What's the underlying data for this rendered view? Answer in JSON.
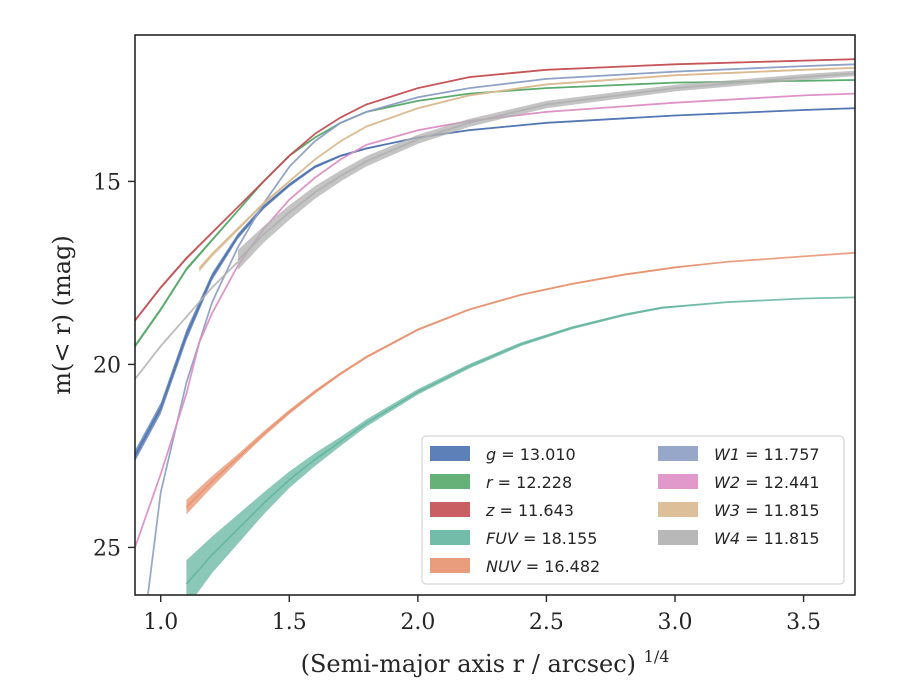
{
  "chart_data": {
    "type": "line",
    "xlabel": "(Semi-major axis r / arcsec)",
    "xlabel_var": "r",
    "xlabel_exponent": "1/4",
    "ylabel": "m(< r) (mag)",
    "xlim": [
      0.9,
      3.7
    ],
    "ylim": [
      26.3,
      11.0
    ],
    "y_inverted": true,
    "grid": false,
    "legend_position": "lower-right",
    "xticks": [
      1.0,
      1.5,
      2.0,
      2.5,
      3.0,
      3.5
    ],
    "xtick_labels": [
      "1.0",
      "1.5",
      "2.0",
      "2.5",
      "3.0",
      "3.5"
    ],
    "yticks": [
      15,
      20,
      25
    ],
    "ytick_labels": [
      "15",
      "20",
      "25"
    ],
    "series": [
      {
        "name": "g",
        "legend_label": "g = 13.010",
        "color": "#4c72b0",
        "x": [
          0.9,
          1.0,
          1.1,
          1.2,
          1.3,
          1.4,
          1.5,
          1.6,
          1.7,
          1.8,
          2.0,
          2.2,
          2.5,
          3.0,
          3.5,
          3.7
        ],
        "y": [
          22.5,
          21.2,
          19.2,
          17.6,
          16.5,
          15.7,
          15.1,
          14.6,
          14.3,
          14.1,
          13.8,
          13.6,
          13.4,
          13.2,
          13.05,
          13.0
        ],
        "band": [
          0.3,
          0.3,
          0.3,
          0.2,
          0.15,
          0.12,
          0.1,
          0.08,
          0.06,
          0.05,
          0.04,
          0.04,
          0.04,
          0.04,
          0.04,
          0.04
        ]
      },
      {
        "name": "r",
        "legend_label": "r = 12.228",
        "color": "#55a868",
        "x": [
          0.9,
          1.0,
          1.1,
          1.2,
          1.3,
          1.4,
          1.5,
          1.6,
          1.7,
          1.8,
          2.0,
          2.2,
          2.5,
          3.0,
          3.5,
          3.7
        ],
        "y": [
          19.5,
          18.5,
          17.4,
          16.6,
          15.8,
          15.0,
          14.3,
          13.8,
          13.4,
          13.1,
          12.8,
          12.6,
          12.45,
          12.3,
          12.25,
          12.23
        ],
        "band": [
          0.1,
          0.1,
          0.1,
          0.08,
          0.06,
          0.05,
          0.05,
          0.05,
          0.04,
          0.04,
          0.04,
          0.04,
          0.04,
          0.04,
          0.04,
          0.04
        ]
      },
      {
        "name": "z",
        "legend_label": "z = 11.643",
        "color": "#c44e52",
        "x": [
          0.9,
          1.0,
          1.1,
          1.2,
          1.3,
          1.4,
          1.5,
          1.6,
          1.7,
          1.8,
          2.0,
          2.2,
          2.5,
          3.0,
          3.5,
          3.7
        ],
        "y": [
          18.8,
          17.9,
          17.1,
          16.4,
          15.7,
          15.0,
          14.3,
          13.7,
          13.25,
          12.9,
          12.45,
          12.15,
          11.95,
          11.8,
          11.7,
          11.66
        ],
        "band": [
          0.08,
          0.08,
          0.08,
          0.06,
          0.05,
          0.05,
          0.05,
          0.04,
          0.04,
          0.04,
          0.04,
          0.04,
          0.04,
          0.04,
          0.04,
          0.04
        ]
      },
      {
        "name": "FUV",
        "legend_label": "FUV = 18.155",
        "color": "#64b5a0",
        "x": [
          1.1,
          1.2,
          1.3,
          1.4,
          1.5,
          1.6,
          1.7,
          1.8,
          2.0,
          2.2,
          2.4,
          2.6,
          2.8,
          2.95,
          3.2,
          3.5,
          3.7
        ],
        "y": [
          26.0,
          25.2,
          24.5,
          23.8,
          23.15,
          22.6,
          22.1,
          21.6,
          20.75,
          20.05,
          19.45,
          19.0,
          18.65,
          18.45,
          18.3,
          18.2,
          18.17
        ],
        "band": [
          1.3,
          1.0,
          0.8,
          0.6,
          0.45,
          0.35,
          0.25,
          0.2,
          0.15,
          0.12,
          0.1,
          0.08,
          0.07,
          0.06,
          0.0,
          0.0,
          0.0
        ]
      },
      {
        "name": "NUV",
        "legend_label": "NUV = 16.482",
        "color": "#e8926e",
        "x": [
          1.1,
          1.2,
          1.3,
          1.4,
          1.5,
          1.6,
          1.7,
          1.8,
          2.0,
          2.2,
          2.4,
          2.6,
          2.8,
          3.0,
          3.2,
          3.5,
          3.7
        ],
        "y": [
          23.9,
          23.2,
          22.55,
          21.9,
          21.3,
          20.75,
          20.25,
          19.8,
          19.05,
          18.5,
          18.1,
          17.8,
          17.55,
          17.35,
          17.2,
          17.05,
          16.95
        ],
        "band": [
          0.4,
          0.3,
          0.2,
          0.15,
          0.12,
          0.1,
          0.08,
          0.07,
          0.06,
          0.05,
          0.05,
          0.05,
          0.05,
          0.05,
          0.0,
          0.0,
          0.0
        ]
      },
      {
        "name": "W1",
        "legend_label": "W1 = 11.757",
        "color": "#8c9dc4",
        "x": [
          0.95,
          1.0,
          1.1,
          1.2,
          1.3,
          1.4,
          1.5,
          1.6,
          1.7,
          1.8,
          2.0,
          2.2,
          2.5,
          3.0,
          3.5,
          3.7
        ],
        "y": [
          26.3,
          23.5,
          20.5,
          18.3,
          16.8,
          15.6,
          14.6,
          13.9,
          13.4,
          13.1,
          12.7,
          12.45,
          12.2,
          12.0,
          11.85,
          11.8
        ],
        "band": [
          0.08,
          0.08,
          0.08,
          0.06,
          0.06,
          0.05,
          0.05,
          0.05,
          0.04,
          0.04,
          0.04,
          0.04,
          0.04,
          0.04,
          0.04,
          0.04
        ]
      },
      {
        "name": "W2",
        "legend_label": "W2 = 12.441",
        "color": "#dd8ec4",
        "x": [
          0.9,
          1.0,
          1.1,
          1.15,
          1.2,
          1.3,
          1.4,
          1.5,
          1.6,
          1.7,
          1.8,
          2.0,
          2.2,
          2.5,
          3.0,
          3.5,
          3.7
        ],
        "y": [
          25.0,
          23.0,
          20.8,
          19.4,
          18.6,
          17.3,
          16.3,
          15.5,
          14.9,
          14.4,
          14.0,
          13.6,
          13.35,
          13.1,
          12.85,
          12.65,
          12.6
        ],
        "band": [
          0.08,
          0.08,
          0.08,
          0.08,
          0.06,
          0.06,
          0.05,
          0.05,
          0.05,
          0.04,
          0.04,
          0.04,
          0.04,
          0.04,
          0.04,
          0.04,
          0.04
        ]
      },
      {
        "name": "W3",
        "legend_label": "W3 = 11.815",
        "color": "#d9b98e",
        "x": [
          1.15,
          1.2,
          1.3,
          1.4,
          1.5,
          1.6,
          1.7,
          1.8,
          2.0,
          2.2,
          2.5,
          3.0,
          3.5,
          3.7
        ],
        "y": [
          17.4,
          17.0,
          16.3,
          15.6,
          15.0,
          14.4,
          13.9,
          13.5,
          13.0,
          12.65,
          12.35,
          12.1,
          11.95,
          11.9
        ],
        "band": [
          0.15,
          0.12,
          0.1,
          0.08,
          0.06,
          0.05,
          0.05,
          0.05,
          0.05,
          0.05,
          0.05,
          0.05,
          0.05,
          0.05
        ]
      },
      {
        "name": "W4",
        "legend_label": "W4 = 11.815",
        "color": "#b0b0b0",
        "x": [
          1.3,
          1.4,
          1.5,
          1.6,
          1.7,
          1.8,
          2.0,
          2.2,
          2.5,
          3.0,
          3.5,
          3.7
        ],
        "y": [
          17.15,
          16.45,
          15.85,
          15.3,
          14.85,
          14.45,
          13.85,
          13.4,
          12.9,
          12.45,
          12.15,
          12.05
        ],
        "band": [
          0.55,
          0.45,
          0.4,
          0.35,
          0.3,
          0.28,
          0.25,
          0.22,
          0.2,
          0.18,
          0.16,
          0.15
        ]
      },
      {
        "name": "W4-extension",
        "color": "#b0b0b0",
        "x": [
          0.9,
          1.0,
          1.1,
          1.2,
          1.3
        ],
        "y": [
          20.4,
          19.5,
          18.7,
          17.9,
          17.2
        ],
        "band": [
          0.0,
          0.0,
          0.0,
          0.0,
          0.0
        ]
      }
    ],
    "legend": {
      "columns": [
        [
          {
            "var": "g",
            "value": " = 13.010",
            "color": "#4c72b0"
          },
          {
            "var": "r",
            "value": " = 12.228",
            "color": "#55a868"
          },
          {
            "var": "z",
            "value": " = 11.643",
            "color": "#c44e52"
          },
          {
            "var": "FUV",
            "value": " = 18.155",
            "color": "#64b5a0"
          },
          {
            "var": "NUV",
            "value": " = 16.482",
            "color": "#e8926e"
          }
        ],
        [
          {
            "var": "W1",
            "value": " = 11.757",
            "color": "#8c9dc4"
          },
          {
            "var": "W2",
            "value": " = 12.441",
            "color": "#dd8ec4"
          },
          {
            "var": "W3",
            "value": " = 11.815",
            "color": "#d9b98e"
          },
          {
            "var": "W4",
            "value": " = 11.815",
            "color": "#b0b0b0"
          }
        ]
      ]
    }
  }
}
